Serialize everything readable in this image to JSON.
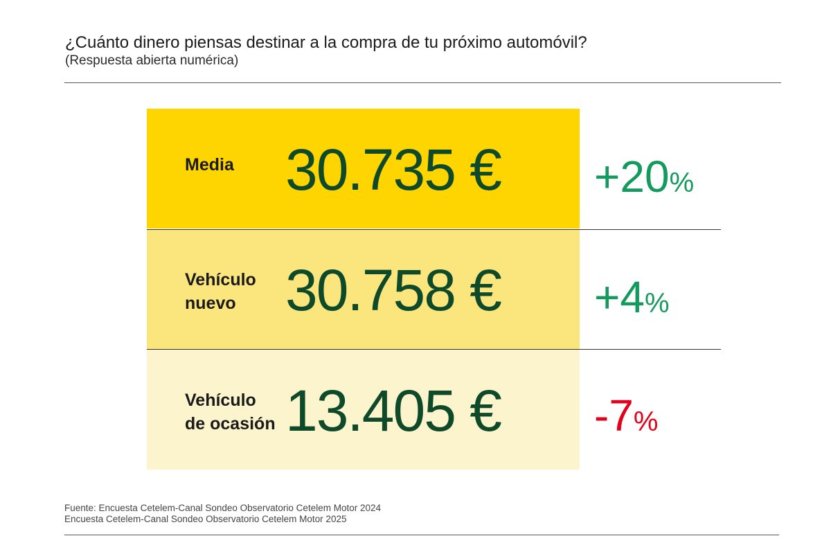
{
  "header": {
    "title": "¿Cuánto dinero piensas destinar a la compra de tu próximo automóvil?",
    "subtitle": "(Respuesta abierta numérica)"
  },
  "colors": {
    "row_backgrounds": [
      "#ffd500",
      "#fbe67e",
      "#fcf4cc"
    ],
    "value_text": "#0e4a2a",
    "positive_change": "#149a5c",
    "negative_change": "#e2001a"
  },
  "chart_data": {
    "type": "table",
    "columns": [
      "label",
      "value",
      "change"
    ],
    "rows": [
      {
        "label": "Media",
        "value": "30.735 €",
        "change": "+20",
        "change_unit": "%",
        "trend": "positive"
      },
      {
        "label": "Vehículo\nnuevo",
        "value": "30.758 €",
        "change": "+4",
        "change_unit": "%",
        "trend": "positive"
      },
      {
        "label": "Vehículo\nde ocasión",
        "value": "13.405 €",
        "change": "-7",
        "change_unit": "%",
        "trend": "negative"
      }
    ]
  },
  "footer": {
    "source_line_1": "Fuente: Encuesta Cetelem-Canal Sondeo Observatorio Cetelem Motor 2024",
    "source_line_2": "Encuesta Cetelem-Canal Sondeo Observatorio Cetelem Motor 2025"
  }
}
